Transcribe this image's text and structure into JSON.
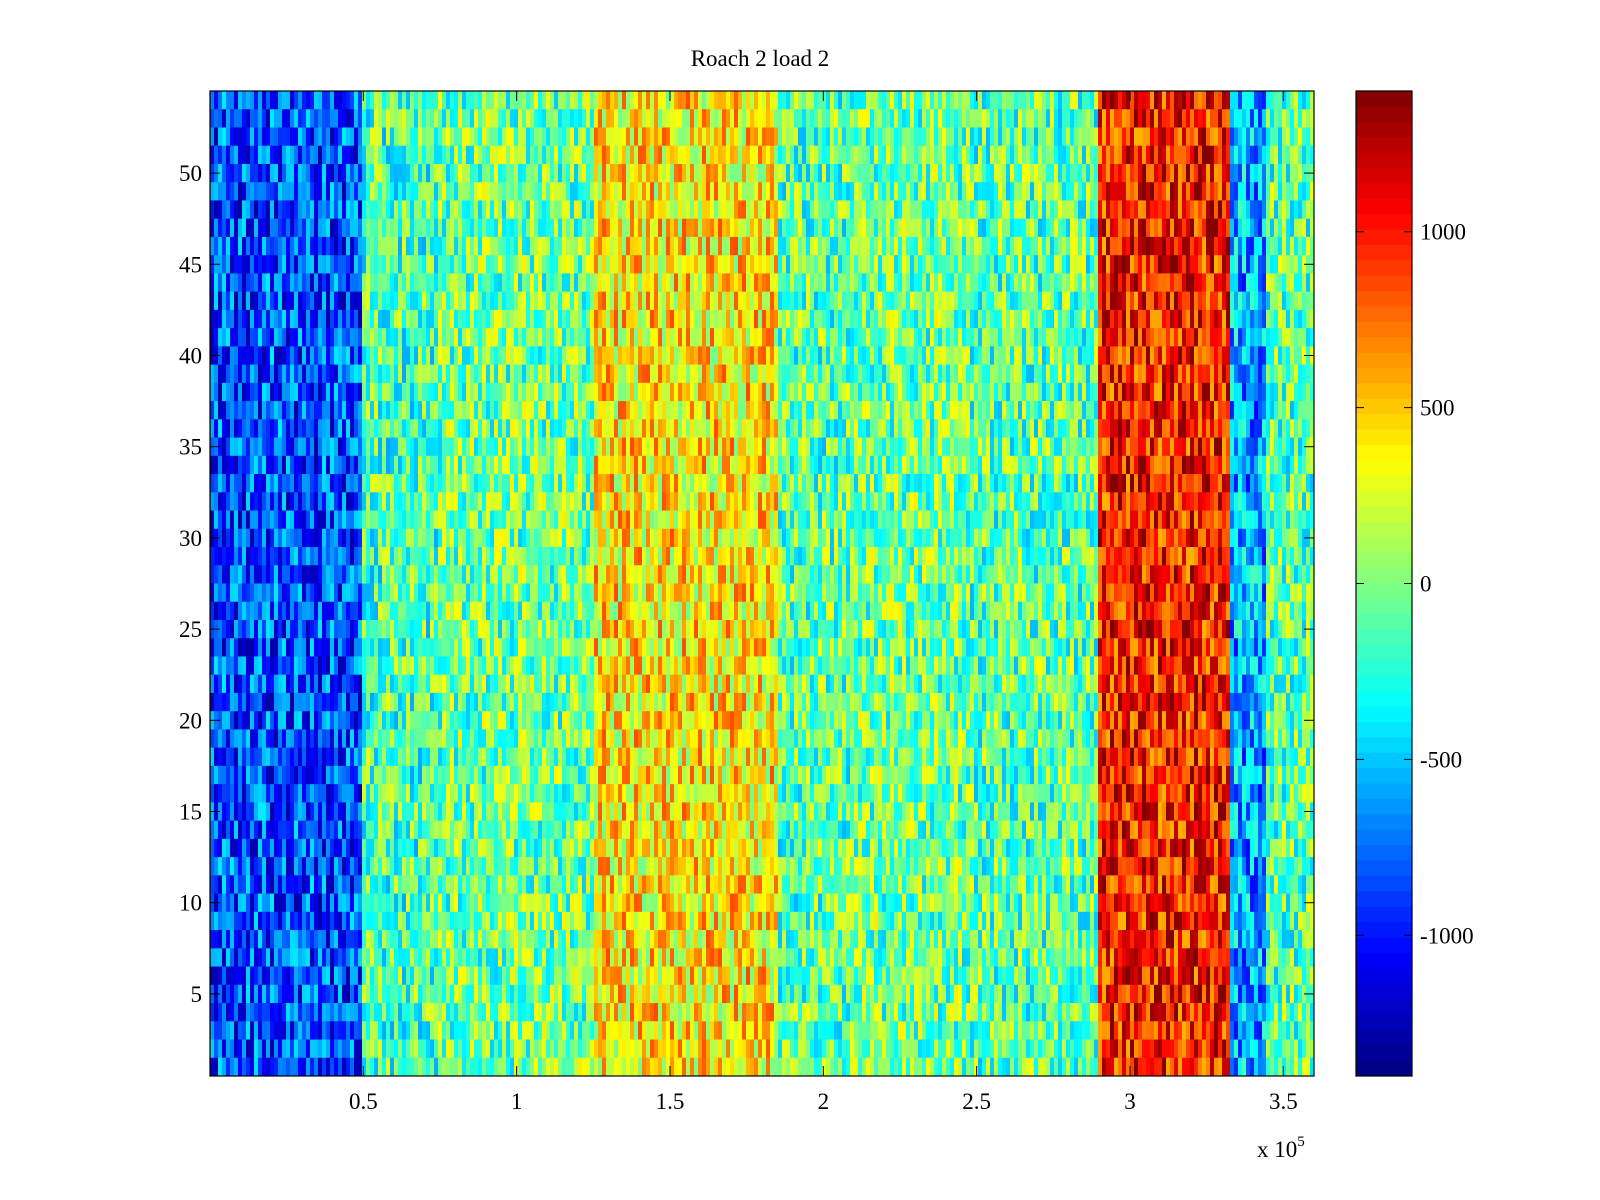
{
  "chart_data": {
    "type": "heatmap",
    "title": "Roach 2 load 2",
    "xlabel": "",
    "ylabel": "",
    "x_multiplier_label": "x 10",
    "x_multiplier_exponent": "5",
    "xlim": [
      0,
      360000
    ],
    "ylim": [
      0.5,
      54.5
    ],
    "x_ticks": [
      {
        "value": 50000,
        "label": "0.5"
      },
      {
        "value": 100000,
        "label": "1"
      },
      {
        "value": 150000,
        "label": "1.5"
      },
      {
        "value": 200000,
        "label": "2"
      },
      {
        "value": 250000,
        "label": "2.5"
      },
      {
        "value": 300000,
        "label": "3"
      },
      {
        "value": 350000,
        "label": "3.5"
      }
    ],
    "y_ticks": [
      {
        "value": 5,
        "label": "5"
      },
      {
        "value": 10,
        "label": "10"
      },
      {
        "value": 15,
        "label": "15"
      },
      {
        "value": 20,
        "label": "20"
      },
      {
        "value": 25,
        "label": "25"
      },
      {
        "value": 30,
        "label": "30"
      },
      {
        "value": 35,
        "label": "35"
      },
      {
        "value": 40,
        "label": "40"
      },
      {
        "value": 45,
        "label": "45"
      },
      {
        "value": 50,
        "label": "50"
      }
    ],
    "rows": 54,
    "colormap": "jet",
    "clim": [
      -1400,
      1400
    ],
    "colorbar_ticks": [
      {
        "value": 1000,
        "label": "1000"
      },
      {
        "value": 500,
        "label": "500"
      },
      {
        "value": 0,
        "label": "0"
      },
      {
        "value": -500,
        "label": "-500"
      },
      {
        "value": -1000,
        "label": "-1000"
      }
    ],
    "column_profile": [
      {
        "x_start": 0,
        "x_end": 50000,
        "mean": -850
      },
      {
        "x_start": 50000,
        "x_end": 75000,
        "mean": -150
      },
      {
        "x_start": 75000,
        "x_end": 125000,
        "mean": -50
      },
      {
        "x_start": 125000,
        "x_end": 185000,
        "mean": 400
      },
      {
        "x_start": 185000,
        "x_end": 210000,
        "mean": -100
      },
      {
        "x_start": 210000,
        "x_end": 248000,
        "mean": -50
      },
      {
        "x_start": 248000,
        "x_end": 290000,
        "mean": -100
      },
      {
        "x_start": 290000,
        "x_end": 333000,
        "mean": 1000
      },
      {
        "x_start": 333000,
        "x_end": 345000,
        "mean": -600
      },
      {
        "x_start": 345000,
        "x_end": 360000,
        "mean": -100
      }
    ],
    "grid": false,
    "colorbar_position": "right"
  }
}
